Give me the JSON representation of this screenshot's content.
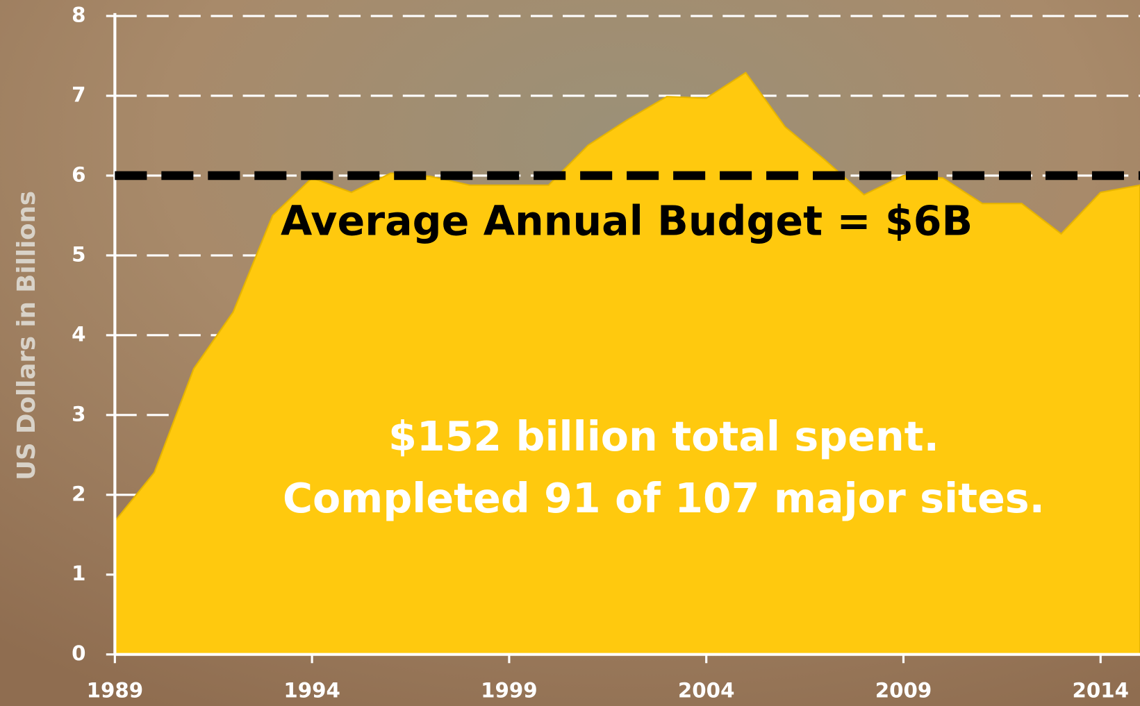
{
  "chart_data": {
    "type": "area",
    "y_label": "US Dollars in Billions",
    "x": [
      1989,
      1990,
      1991,
      1992,
      1993,
      1994,
      1995,
      1996,
      1997,
      1998,
      1999,
      2000,
      2001,
      2002,
      2003,
      2004,
      2005,
      2006,
      2007,
      2008,
      2009,
      2010,
      2011,
      2012,
      2013,
      2014,
      2015
    ],
    "values": [
      1.67,
      2.28,
      3.58,
      4.29,
      5.5,
      5.97,
      5.79,
      6.03,
      5.99,
      5.88,
      5.88,
      5.88,
      6.38,
      6.7,
      6.99,
      6.97,
      7.29,
      6.61,
      6.2,
      5.76,
      6.0,
      5.97,
      5.65,
      5.65,
      5.27,
      5.79,
      5.88
    ],
    "color": "#ffc90e",
    "xlim": [
      1989,
      2015
    ],
    "xticks": [
      1989,
      1994,
      1999,
      2004,
      2009,
      2014
    ],
    "ylim": [
      0,
      8
    ],
    "yticks": [
      0,
      1,
      2,
      3,
      4,
      5,
      6,
      7,
      8
    ],
    "grid": true,
    "average": {
      "value": 6,
      "label": "Average Annual Budget = $6B",
      "color": "#000000"
    },
    "annotations": [
      "$152 billion total spent.",
      "Completed 91 of 107 major sites."
    ]
  }
}
